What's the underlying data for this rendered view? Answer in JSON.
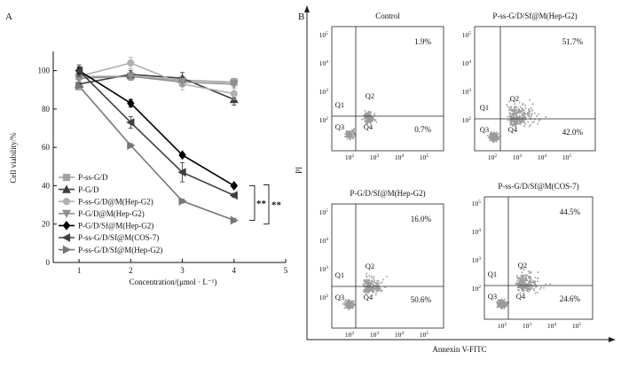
{
  "panel_a_label": "A",
  "panel_b_label": "B",
  "chart_data": [
    {
      "type": "line",
      "panel": "A",
      "xlabel": "Concentration/(μmol · L⁻¹)",
      "ylabel": "Cell viability/%",
      "xlim": [
        0.5,
        5
      ],
      "ylim": [
        0,
        110
      ],
      "xticks": [
        1,
        2,
        3,
        4,
        5
      ],
      "yticks": [
        0,
        20,
        40,
        60,
        80,
        100
      ],
      "x": [
        1,
        2,
        3,
        4
      ],
      "series": [
        {
          "name": "P-ss-G/D",
          "values": [
            97,
            97,
            95,
            94
          ],
          "errors": [
            3,
            2,
            2,
            2
          ],
          "color": "#a3a3a3",
          "marker": "square"
        },
        {
          "name": "P-G/D",
          "values": [
            93,
            98,
            96,
            85
          ],
          "errors": [
            2,
            2,
            3,
            3
          ],
          "color": "#3d3d3d",
          "marker": "triangle"
        },
        {
          "name": "P-ss-G/D@M(Hep-G2)",
          "values": [
            97,
            104,
            93,
            88
          ],
          "errors": [
            2,
            3,
            3,
            3
          ],
          "color": "#b0b0b0",
          "marker": "circle"
        },
        {
          "name": "P-G/D@M(Hep-G2)",
          "values": [
            96,
            97,
            94,
            93
          ],
          "errors": [
            2,
            2,
            2,
            2
          ],
          "color": "#8f8f8f",
          "marker": "triangle-down"
        },
        {
          "name": "P-G/D/Sf@M(Hep-G2)",
          "values": [
            100,
            83,
            56,
            40
          ],
          "errors": [
            2,
            2,
            1,
            1
          ],
          "color": "#000000",
          "marker": "diamond"
        },
        {
          "name": "P-ss-G/D/Sf@M(COS-7)",
          "values": [
            100,
            73,
            47,
            35
          ],
          "errors": [
            3,
            3,
            5,
            1
          ],
          "color": "#404040",
          "marker": "triangle-left"
        },
        {
          "name": "P-ss-G/D/Sf@M(Hep-G2)",
          "values": [
            92,
            61,
            32,
            22
          ],
          "errors": [
            2,
            1,
            1,
            1
          ],
          "color": "#777777",
          "marker": "triangle-right"
        }
      ],
      "annotations": [
        "**",
        "**"
      ]
    },
    {
      "type": "scatter",
      "panel": "B",
      "subtype": "flow-cytometry quadrant plots",
      "xlabel": "Annexin V-FITC",
      "ylabel": "PI",
      "axis_tick_exponents": [
        "2",
        "3",
        "4",
        "5"
      ],
      "quadrant_labels": [
        "Q1",
        "Q2",
        "Q3",
        "Q4"
      ],
      "plots": [
        {
          "title": "Control",
          "q2": "1.9%",
          "q4": "0.7%",
          "spread": 0.35
        },
        {
          "title": "P-ss-G/D/Sf@M(Hep-G2)",
          "q2": "51.7%",
          "q4": "42.0%",
          "spread": 1.0
        },
        {
          "title": "P-G/D/Sf@M(Hep-G2)",
          "q2": "16.0%",
          "q4": "50.6%",
          "spread": 0.65
        },
        {
          "title": "P-ss-G/D/Sf@M(COS-7)",
          "q2": "44.5%",
          "q4": "24.6%",
          "spread": 0.9
        }
      ]
    }
  ]
}
